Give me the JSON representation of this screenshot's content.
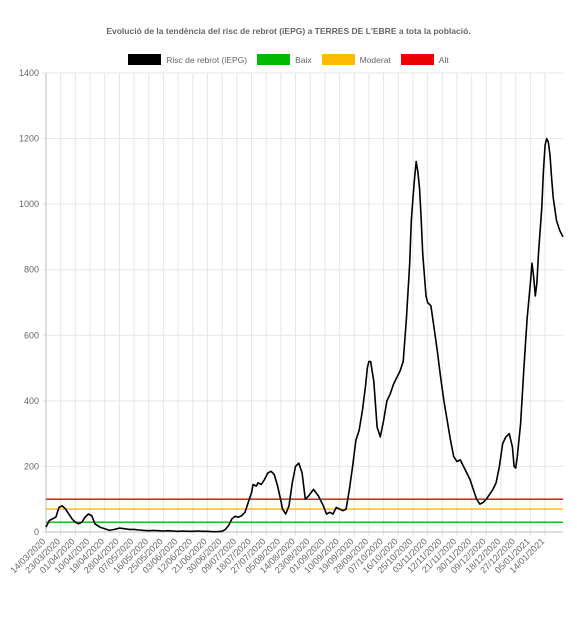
{
  "chart_data": {
    "type": "line",
    "title": "Evolució de la tendència del risc de rebrot (iEPG) a TERRES DE L'EBRE a tota la població.",
    "xlabel": "",
    "ylabel": "",
    "ylim": [
      0,
      1400
    ],
    "y_ticks": [
      0,
      200,
      400,
      600,
      800,
      1000,
      1200,
      1400
    ],
    "grid": true,
    "legend_position": "top",
    "x_start": "14/03/2020",
    "x_end": "25/01/2021",
    "x_tick_labels": [
      "14/03/2020",
      "23/03/2020",
      "01/04/2020",
      "10/04/2020",
      "19/04/2020",
      "28/04/2020",
      "07/05/2020",
      "16/05/2020",
      "25/05/2020",
      "03/06/2020",
      "12/06/2020",
      "21/06/2020",
      "30/06/2020",
      "09/07/2020",
      "18/07/2020",
      "27/07/2020",
      "05/08/2020",
      "14/08/2020",
      "23/08/2020",
      "01/09/2020",
      "10/09/2020",
      "19/09/2020",
      "28/09/2020",
      "07/10/2020",
      "16/10/2020",
      "25/10/2020",
      "03/11/2020",
      "12/11/2020",
      "21/11/2020",
      "30/11/2020",
      "09/12/2020",
      "18/12/2020",
      "27/12/2020",
      "05/01/2021",
      "14/01/2021"
    ],
    "series": [
      {
        "name": "Risc de rebrot (iEPG)",
        "color": "#000000",
        "points": [
          [
            "14/03/2020",
            15
          ],
          [
            "16/03/2020",
            35
          ],
          [
            "18/03/2020",
            40
          ],
          [
            "20/03/2020",
            45
          ],
          [
            "22/03/2020",
            75
          ],
          [
            "24/03/2020",
            80
          ],
          [
            "26/03/2020",
            70
          ],
          [
            "28/03/2020",
            55
          ],
          [
            "30/03/2020",
            40
          ],
          [
            "01/04/2020",
            30
          ],
          [
            "03/04/2020",
            25
          ],
          [
            "05/04/2020",
            30
          ],
          [
            "07/04/2020",
            45
          ],
          [
            "09/04/2020",
            55
          ],
          [
            "11/04/2020",
            50
          ],
          [
            "13/04/2020",
            25
          ],
          [
            "16/04/2020",
            15
          ],
          [
            "19/04/2020",
            10
          ],
          [
            "22/04/2020",
            5
          ],
          [
            "25/04/2020",
            8
          ],
          [
            "28/04/2020",
            12
          ],
          [
            "01/05/2020",
            10
          ],
          [
            "04/05/2020",
            8
          ],
          [
            "07/05/2020",
            8
          ],
          [
            "10/05/2020",
            6
          ],
          [
            "13/05/2020",
            5
          ],
          [
            "16/05/2020",
            4
          ],
          [
            "19/05/2020",
            5
          ],
          [
            "22/05/2020",
            4
          ],
          [
            "25/05/2020",
            3
          ],
          [
            "28/05/2020",
            4
          ],
          [
            "31/05/2020",
            3
          ],
          [
            "03/06/2020",
            2
          ],
          [
            "06/06/2020",
            3
          ],
          [
            "09/06/2020",
            2
          ],
          [
            "12/06/2020",
            2
          ],
          [
            "15/06/2020",
            3
          ],
          [
            "18/06/2020",
            2
          ],
          [
            "21/06/2020",
            2
          ],
          [
            "24/06/2020",
            1
          ],
          [
            "27/06/2020",
            1
          ],
          [
            "30/06/2020",
            2
          ],
          [
            "02/07/2020",
            8
          ],
          [
            "04/07/2020",
            20
          ],
          [
            "06/07/2020",
            40
          ],
          [
            "08/07/2020",
            48
          ],
          [
            "10/07/2020",
            45
          ],
          [
            "12/07/2020",
            50
          ],
          [
            "14/07/2020",
            60
          ],
          [
            "16/07/2020",
            90
          ],
          [
            "18/07/2020",
            120
          ],
          [
            "19/07/2020",
            145
          ],
          [
            "21/07/2020",
            140
          ],
          [
            "22/07/2020",
            150
          ],
          [
            "24/07/2020",
            145
          ],
          [
            "26/07/2020",
            160
          ],
          [
            "28/07/2020",
            180
          ],
          [
            "30/07/2020",
            185
          ],
          [
            "01/08/2020",
            175
          ],
          [
            "03/08/2020",
            140
          ],
          [
            "05/08/2020",
            95
          ],
          [
            "06/08/2020",
            70
          ],
          [
            "08/08/2020",
            55
          ],
          [
            "10/08/2020",
            80
          ],
          [
            "12/08/2020",
            150
          ],
          [
            "14/08/2020",
            200
          ],
          [
            "16/08/2020",
            210
          ],
          [
            "18/08/2020",
            180
          ],
          [
            "20/08/2020",
            100
          ],
          [
            "22/08/2020",
            110
          ],
          [
            "25/08/2020",
            130
          ],
          [
            "28/08/2020",
            110
          ],
          [
            "31/08/2020",
            80
          ],
          [
            "02/09/2020",
            55
          ],
          [
            "04/09/2020",
            60
          ],
          [
            "06/09/2020",
            55
          ],
          [
            "08/09/2020",
            75
          ],
          [
            "10/09/2020",
            70
          ],
          [
            "12/09/2020",
            65
          ],
          [
            "14/09/2020",
            70
          ],
          [
            "16/09/2020",
            130
          ],
          [
            "18/09/2020",
            200
          ],
          [
            "20/09/2020",
            280
          ],
          [
            "22/09/2020",
            310
          ],
          [
            "24/09/2020",
            370
          ],
          [
            "26/09/2020",
            450
          ],
          [
            "27/09/2020",
            500
          ],
          [
            "28/09/2020",
            520
          ],
          [
            "29/09/2020",
            520
          ],
          [
            "01/10/2020",
            460
          ],
          [
            "03/10/2020",
            320
          ],
          [
            "05/10/2020",
            290
          ],
          [
            "07/10/2020",
            340
          ],
          [
            "09/10/2020",
            400
          ],
          [
            "11/10/2020",
            420
          ],
          [
            "13/10/2020",
            450
          ],
          [
            "15/10/2020",
            470
          ],
          [
            "17/10/2020",
            490
          ],
          [
            "19/10/2020",
            520
          ],
          [
            "21/10/2020",
            650
          ],
          [
            "23/10/2020",
            820
          ],
          [
            "24/10/2020",
            950
          ],
          [
            "25/10/2020",
            1020
          ],
          [
            "26/10/2020",
            1080
          ],
          [
            "27/10/2020",
            1130
          ],
          [
            "28/10/2020",
            1100
          ],
          [
            "29/10/2020",
            1050
          ],
          [
            "30/10/2020",
            960
          ],
          [
            "31/10/2020",
            850
          ],
          [
            "02/11/2020",
            720
          ],
          [
            "03/11/2020",
            700
          ],
          [
            "05/11/2020",
            690
          ],
          [
            "07/11/2020",
            620
          ],
          [
            "09/11/2020",
            550
          ],
          [
            "11/11/2020",
            470
          ],
          [
            "13/11/2020",
            400
          ],
          [
            "15/11/2020",
            340
          ],
          [
            "17/11/2020",
            280
          ],
          [
            "19/11/2020",
            230
          ],
          [
            "21/11/2020",
            215
          ],
          [
            "23/11/2020",
            220
          ],
          [
            "25/11/2020",
            200
          ],
          [
            "27/11/2020",
            180
          ],
          [
            "29/11/2020",
            160
          ],
          [
            "01/12/2020",
            130
          ],
          [
            "03/12/2020",
            100
          ],
          [
            "05/12/2020",
            85
          ],
          [
            "07/12/2020",
            90
          ],
          [
            "09/12/2020",
            100
          ],
          [
            "11/12/2020",
            115
          ],
          [
            "13/12/2020",
            130
          ],
          [
            "15/12/2020",
            150
          ],
          [
            "17/12/2020",
            200
          ],
          [
            "19/12/2020",
            270
          ],
          [
            "21/12/2020",
            290
          ],
          [
            "23/12/2020",
            300
          ],
          [
            "25/12/2020",
            260
          ],
          [
            "26/12/2020",
            200
          ],
          [
            "27/12/2020",
            195
          ],
          [
            "28/12/2020",
            230
          ],
          [
            "30/12/2020",
            330
          ],
          [
            "01/01/2021",
            500
          ],
          [
            "03/01/2021",
            650
          ],
          [
            "05/01/2021",
            760
          ],
          [
            "06/01/2021",
            820
          ],
          [
            "07/01/2021",
            780
          ],
          [
            "08/01/2021",
            720
          ],
          [
            "09/01/2021",
            760
          ],
          [
            "10/01/2021",
            850
          ],
          [
            "12/01/2021",
            990
          ],
          [
            "13/01/2021",
            1100
          ],
          [
            "14/01/2021",
            1180
          ],
          [
            "15/01/2021",
            1200
          ],
          [
            "16/01/2021",
            1190
          ],
          [
            "17/01/2021",
            1150
          ],
          [
            "18/01/2021",
            1080
          ],
          [
            "19/01/2021",
            1020
          ],
          [
            "21/01/2021",
            950
          ],
          [
            "23/01/2021",
            920
          ],
          [
            "25/01/2021",
            900
          ]
        ]
      },
      {
        "name": "Baix",
        "color": "#00b900",
        "points": [
          [
            "14/03/2020",
            30
          ],
          [
            "25/01/2021",
            30
          ]
        ]
      },
      {
        "name": "Moderat",
        "color": "#ffbb00",
        "points": [
          [
            "14/03/2020",
            70
          ],
          [
            "25/01/2021",
            70
          ]
        ]
      },
      {
        "name": "Alt",
        "color": "#ee0000",
        "points": [
          [
            "14/03/2020",
            100
          ],
          [
            "25/01/2021",
            100
          ]
        ]
      }
    ]
  }
}
